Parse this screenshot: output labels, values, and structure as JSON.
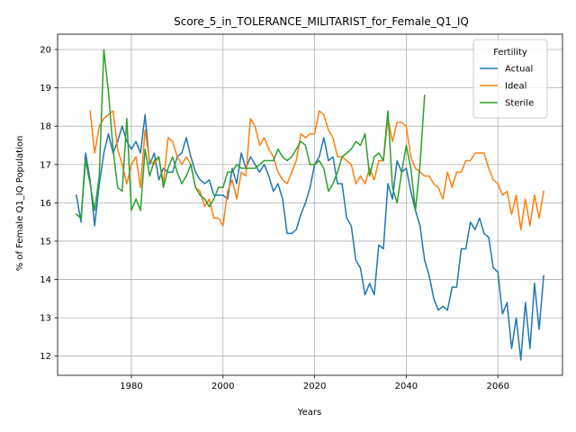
{
  "chart_data": {
    "type": "line",
    "title": "Score_5_in_TOLERANCE_MILITARIST_for_Female_Q1_IQ",
    "xlabel": "Years",
    "ylabel": "% of Female Q1_IQ Population",
    "xlim": [
      1963.9,
      2074.1
    ],
    "ylim": [
      11.5,
      20.4
    ],
    "xticks": [
      1980,
      2000,
      2020,
      2040,
      2060
    ],
    "yticks": [
      12,
      13,
      14,
      15,
      16,
      17,
      18,
      19,
      20
    ],
    "grid": true,
    "legend": {
      "title": "Fertility",
      "placement": "upper right"
    },
    "series": [
      {
        "name": "Actual",
        "color": "#1f77b4",
        "x": [
          1968,
          1969,
          1970,
          1971,
          1972,
          1973,
          1974,
          1975,
          1976,
          1977,
          1978,
          1979,
          1980,
          1981,
          1982,
          1983,
          1984,
          1985,
          1986,
          1987,
          1988,
          1989,
          1990,
          1991,
          1992,
          1993,
          1994,
          1995,
          1996,
          1997,
          1998,
          1999,
          2000,
          2001,
          2002,
          2003,
          2004,
          2005,
          2006,
          2007,
          2008,
          2009,
          2010,
          2011,
          2012,
          2013,
          2014,
          2015,
          2016,
          2017,
          2018,
          2019,
          2020,
          2021,
          2022,
          2023,
          2024,
          2025,
          2026,
          2027,
          2028,
          2029,
          2030,
          2031,
          2032,
          2033,
          2034,
          2035,
          2036,
          2037,
          2038,
          2039,
          2040,
          2041,
          2042,
          2043,
          2044,
          2045,
          2046,
          2047,
          2048,
          2049,
          2050,
          2051,
          2052,
          2053,
          2054,
          2055,
          2056,
          2057,
          2058,
          2059,
          2060,
          2061,
          2062,
          2063,
          2064,
          2065,
          2066,
          2067,
          2068,
          2069,
          2070
        ],
        "values": [
          16.2,
          15.5,
          17.3,
          16.6,
          15.4,
          16.5,
          17.3,
          17.8,
          17.3,
          17.6,
          18.0,
          17.6,
          17.4,
          17.6,
          17.3,
          18.3,
          17.0,
          17.3,
          16.6,
          16.9,
          16.8,
          16.8,
          17.2,
          17.3,
          17.7,
          17.2,
          16.8,
          16.6,
          16.5,
          16.6,
          16.2,
          16.2,
          16.2,
          16.1,
          16.9,
          16.5,
          17.3,
          16.9,
          17.2,
          17.0,
          16.8,
          17.0,
          16.7,
          16.3,
          16.5,
          16.1,
          15.2,
          15.2,
          15.3,
          15.7,
          16.0,
          16.4,
          17.0,
          17.2,
          17.7,
          17.1,
          17.2,
          16.5,
          16.5,
          15.6,
          15.4,
          14.5,
          14.3,
          13.6,
          13.9,
          13.6,
          14.9,
          14.8,
          16.5,
          16.1,
          17.1,
          16.8,
          16.9,
          16.3,
          15.8,
          15.4,
          14.5,
          14.1,
          13.5,
          13.2,
          13.3,
          13.2,
          13.8,
          13.8,
          14.8,
          14.8,
          15.5,
          15.3,
          15.6,
          15.2,
          15.1,
          14.3,
          14.2,
          13.1,
          13.4,
          12.2,
          13.0,
          11.9,
          13.4,
          12.2,
          13.9,
          12.7,
          14.1
        ]
      },
      {
        "name": "Ideal",
        "color": "#ff7f0e",
        "x": [
          1971,
          1972,
          1973,
          1974,
          1975,
          1976,
          1977,
          1978,
          1979,
          1980,
          1981,
          1982,
          1983,
          1984,
          1985,
          1986,
          1987,
          1988,
          1989,
          1990,
          1991,
          1992,
          1993,
          1994,
          1995,
          1996,
          1997,
          1998,
          1999,
          2000,
          2001,
          2002,
          2003,
          2004,
          2005,
          2006,
          2007,
          2008,
          2009,
          2010,
          2011,
          2012,
          2013,
          2014,
          2015,
          2016,
          2017,
          2018,
          2019,
          2020,
          2021,
          2022,
          2023,
          2024,
          2025,
          2026,
          2027,
          2028,
          2029,
          2030,
          2031,
          2032,
          2033,
          2034,
          2035,
          2036,
          2037,
          2038,
          2039,
          2040,
          2041,
          2042,
          2043,
          2044,
          2045,
          2046,
          2047,
          2048,
          2049,
          2050,
          2051,
          2052,
          2053,
          2054,
          2055,
          2056,
          2057,
          2058,
          2059,
          2060,
          2061,
          2062,
          2063,
          2064,
          2065,
          2066,
          2067,
          2068,
          2069,
          2070
        ],
        "values": [
          18.4,
          17.3,
          18.0,
          18.2,
          18.3,
          18.4,
          17.4,
          17.0,
          16.5,
          17.0,
          17.2,
          16.4,
          17.9,
          17.1,
          17.0,
          17.2,
          16.5,
          17.7,
          17.6,
          17.2,
          17.0,
          17.2,
          17.0,
          16.4,
          16.3,
          15.9,
          16.1,
          15.6,
          15.6,
          15.4,
          16.3,
          16.6,
          16.1,
          16.8,
          16.7,
          18.2,
          18.0,
          17.5,
          17.7,
          17.4,
          17.2,
          16.8,
          16.6,
          16.5,
          16.8,
          17.1,
          17.8,
          17.7,
          17.8,
          17.8,
          18.4,
          18.3,
          17.9,
          17.7,
          17.2,
          17.2,
          17.1,
          17.0,
          16.5,
          16.7,
          16.5,
          16.9,
          16.6,
          17.1,
          17.1,
          18.2,
          17.6,
          18.1,
          18.1,
          18.0,
          17.2,
          16.9,
          16.8,
          16.7,
          16.7,
          16.5,
          16.4,
          16.1,
          16.8,
          16.4,
          16.8,
          16.8,
          17.1,
          17.1,
          17.3,
          17.3,
          17.3,
          16.9,
          16.6,
          16.5,
          16.2,
          16.3,
          15.7,
          16.2,
          15.3,
          16.1,
          15.4,
          16.2,
          15.6,
          16.3
        ]
      },
      {
        "name": "Sterile",
        "color": "#2ca02c",
        "x": [
          1968,
          1969,
          1970,
          1971,
          1972,
          1973,
          1974,
          1975,
          1976,
          1977,
          1978,
          1979,
          1980,
          1981,
          1982,
          1983,
          1984,
          1985,
          1986,
          1987,
          1988,
          1989,
          1990,
          1991,
          1992,
          1993,
          1994,
          1995,
          1996,
          1997,
          1998,
          1999,
          2000,
          2001,
          2002,
          2003,
          2004,
          2005,
          2006,
          2007,
          2008,
          2009,
          2010,
          2011,
          2012,
          2013,
          2014,
          2015,
          2016,
          2017,
          2018,
          2019,
          2020,
          2021,
          2022,
          2023,
          2024,
          2025,
          2026,
          2027,
          2028,
          2029,
          2030,
          2031,
          2032,
          2033,
          2034,
          2035,
          2036,
          2037,
          2038,
          2039,
          2040,
          2041,
          2042,
          2043,
          2044
        ],
        "values": [
          15.7,
          15.6,
          17.1,
          16.5,
          15.8,
          16.7,
          20.0,
          18.9,
          17.4,
          16.4,
          16.3,
          18.2,
          15.8,
          16.1,
          15.8,
          17.4,
          16.7,
          17.1,
          17.2,
          16.4,
          16.9,
          17.2,
          16.8,
          16.5,
          16.7,
          17.0,
          16.4,
          16.2,
          16.1,
          15.9,
          16.1,
          16.4,
          16.4,
          16.8,
          16.8,
          17.0,
          16.9,
          16.9,
          16.9,
          16.9,
          17.0,
          17.1,
          17.1,
          17.1,
          17.4,
          17.2,
          17.1,
          17.2,
          17.4,
          17.6,
          17.5,
          17.0,
          17.0,
          17.1,
          16.9,
          16.3,
          16.5,
          16.8,
          17.2,
          17.3,
          17.4,
          17.6,
          17.5,
          17.8,
          16.7,
          17.2,
          17.3,
          17.1,
          18.4,
          16.4,
          16.0,
          16.8,
          17.5,
          16.9,
          15.8,
          17.0,
          18.8
        ]
      }
    ]
  }
}
